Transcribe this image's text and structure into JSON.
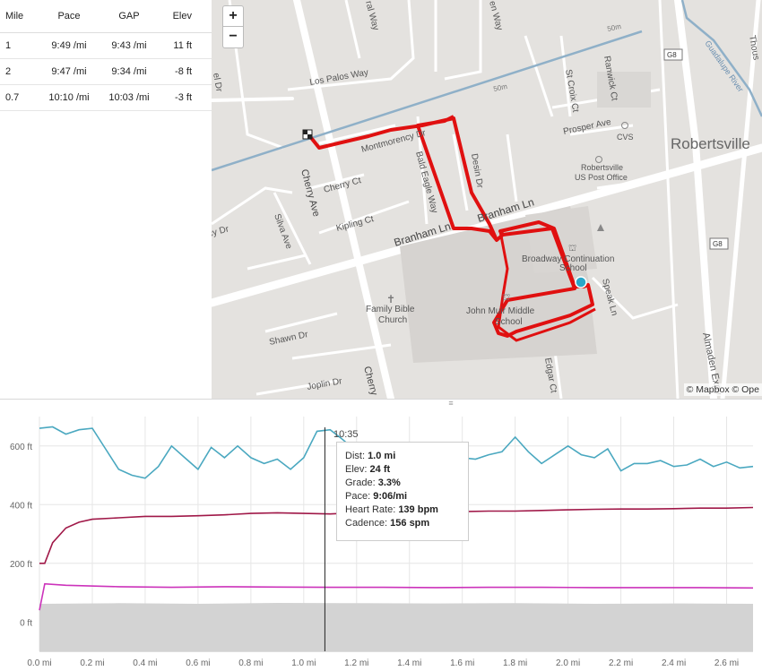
{
  "splits": {
    "headers": [
      "Mile",
      "Pace",
      "GAP",
      "Elev"
    ],
    "rows": [
      [
        "1",
        "9:49 /mi",
        "9:43 /mi",
        "11 ft"
      ],
      [
        "2",
        "9:47 /mi",
        "9:34 /mi",
        "-8 ft"
      ],
      [
        "0.7",
        "10:10 /mi",
        "10:03 /mi",
        "-3 ft"
      ]
    ]
  },
  "map": {
    "zoom_in": "+",
    "zoom_out": "−",
    "attribution": "© Mapbox © Ope",
    "labels": {
      "los_palos": "Los Palos Way",
      "montmorency": "Montmorency Dr",
      "cherry_ct": "Cherry Ct",
      "kipling": "Kipling Ct",
      "bald_eagle": "Bald Eagle Way",
      "desin": "Desin Dr",
      "branham1": "Branham Ln",
      "branham2": "Branham Ln",
      "cherry_ave": "Cherry Ave",
      "cherry_ave2": "Cherry",
      "silva": "Silva Ave",
      "shawn": "Shawn Dr",
      "joplin": "Joplin Dr",
      "family_bible": "Family Bible",
      "church": "Church",
      "broadway": "Broadway Continuation",
      "school1": "School",
      "john_muir": "John Muir Middle",
      "school2": "School",
      "speak": "Speak Ln",
      "edgar": "Edgar Ct",
      "st_croix": "St Croix Ct",
      "ranwick": "Ranwick Ct",
      "prosper": "Prosper Ave",
      "cvs": "CVS",
      "robertsville": "Robertsville",
      "post1": "Robertsville",
      "post2": "US Post Office",
      "g8a": "G8",
      "g8b": "G8",
      "almaden": "Almaden Expy",
      "guadalupe": "Guadalupe River",
      "fifty1": "50m",
      "fifty2": "50m",
      "cy_dr": "rcy Dr",
      "ral_way": "ral Way",
      "en_way": "en Way",
      "thous": "Thous",
      "el_dr": "el Dr"
    }
  },
  "chart": {
    "hover_time": "10:35",
    "tooltip": {
      "dist_label": "Dist:",
      "dist": "1.0 mi",
      "elev_label": "Elev:",
      "elev": "24 ft",
      "grade_label": "Grade:",
      "grade": "3.3%",
      "pace_label": "Pace:",
      "pace": "9:06/mi",
      "hr_label": "Heart Rate:",
      "hr": "139 bpm",
      "cad_label": "Cadence:",
      "cad": "156 spm"
    }
  },
  "chart_data": {
    "type": "line",
    "x_ticks": [
      "0.0 mi",
      "0.2 mi",
      "0.4 mi",
      "0.6 mi",
      "0.8 mi",
      "1.0 mi",
      "1.2 mi",
      "1.4 mi",
      "1.6 mi",
      "1.8 mi",
      "2.0 mi",
      "2.2 mi",
      "2.4 mi",
      "2.6 mi"
    ],
    "y_ticks": [
      "600 ft",
      "400 ft",
      "200 ft",
      "0 ft"
    ],
    "xlim": [
      0,
      2.7
    ],
    "ylim": [
      -100,
      700
    ],
    "grid": true,
    "colors": {
      "pace": "#4aa8c0",
      "heart": "#a01848",
      "cadence": "#cc33bb",
      "elev": "#d3d3d3"
    },
    "series": [
      {
        "key": "pace",
        "x": [
          0,
          0.05,
          0.1,
          0.15,
          0.2,
          0.25,
          0.3,
          0.35,
          0.4,
          0.45,
          0.5,
          0.55,
          0.6,
          0.65,
          0.7,
          0.75,
          0.8,
          0.85,
          0.9,
          0.95,
          1.0,
          1.05,
          1.1,
          1.15,
          1.2,
          1.25,
          1.3,
          1.35,
          1.4,
          1.45,
          1.5,
          1.55,
          1.6,
          1.65,
          1.7,
          1.75,
          1.8,
          1.85,
          1.9,
          1.95,
          2.0,
          2.05,
          2.1,
          2.15,
          2.2,
          2.25,
          2.3,
          2.35,
          2.4,
          2.45,
          2.5,
          2.55,
          2.6,
          2.65,
          2.7
        ],
        "y": [
          660,
          665,
          640,
          655,
          660,
          590,
          520,
          500,
          490,
          530,
          600,
          560,
          520,
          595,
          560,
          600,
          560,
          540,
          555,
          520,
          560,
          650,
          655,
          620,
          580,
          575,
          600,
          590,
          545,
          560,
          530,
          555,
          560,
          555,
          570,
          580,
          630,
          580,
          540,
          570,
          600,
          570,
          560,
          590,
          515,
          540,
          540,
          550,
          530,
          535,
          555,
          530,
          545,
          525,
          530
        ]
      },
      {
        "key": "heart",
        "x": [
          0,
          0.02,
          0.05,
          0.1,
          0.15,
          0.2,
          0.3,
          0.4,
          0.5,
          0.6,
          0.7,
          0.8,
          0.9,
          1.0,
          1.1,
          1.2,
          1.3,
          1.4,
          1.5,
          1.6,
          1.7,
          1.8,
          1.9,
          2.0,
          2.1,
          2.2,
          2.3,
          2.4,
          2.5,
          2.6,
          2.7
        ],
        "y": [
          200,
          200,
          270,
          320,
          340,
          350,
          355,
          360,
          360,
          362,
          365,
          370,
          372,
          370,
          368,
          372,
          374,
          375,
          375,
          376,
          378,
          378,
          380,
          382,
          384,
          385,
          385,
          386,
          388,
          388,
          390
        ]
      },
      {
        "key": "cadence",
        "x": [
          0,
          0.02,
          0.1,
          0.3,
          0.5,
          0.7,
          0.9,
          1.1,
          1.3,
          1.5,
          1.7,
          1.9,
          2.1,
          2.3,
          2.5,
          2.7
        ],
        "y": [
          40,
          130,
          125,
          120,
          118,
          120,
          119,
          118,
          118,
          117,
          118,
          118,
          117,
          117,
          117,
          116
        ]
      },
      {
        "key": "elev",
        "x": [
          0,
          0.3,
          0.6,
          0.9,
          1.2,
          1.5,
          1.8,
          2.1,
          2.4,
          2.7
        ],
        "y": [
          22,
          24,
          22,
          25,
          24,
          23,
          24,
          22,
          23,
          22
        ]
      }
    ],
    "hover_x": 1.08
  }
}
